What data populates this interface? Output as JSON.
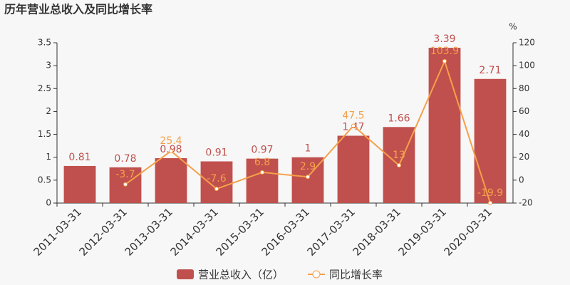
{
  "chart_data": {
    "type": "bar-line",
    "title": "历年营业总收入及同比增长率",
    "categories": [
      "2011-03-31",
      "2012-03-31",
      "2013-03-31",
      "2014-03-31",
      "2015-03-31",
      "2016-03-31",
      "2017-03-31",
      "2018-03-31",
      "2019-03-31",
      "2020-03-31"
    ],
    "series": [
      {
        "name": "营业总收入（亿）",
        "color": "#c0504d",
        "type": "bar",
        "values": [
          0.81,
          0.78,
          0.98,
          0.91,
          0.97,
          1,
          1.47,
          1.66,
          3.39,
          2.71
        ]
      },
      {
        "name": "同比增长率",
        "color": "#f5a04a",
        "type": "line",
        "axis": "y2",
        "values": [
          null,
          -3.7,
          25.4,
          -7.6,
          6.8,
          2.9,
          47.5,
          13,
          103.9,
          -19.9
        ]
      }
    ],
    "ylim": [
      0,
      3.5
    ],
    "yticks": [
      0,
      0.5,
      1,
      1.5,
      2,
      2.5,
      3,
      3.5
    ],
    "y2lim": [
      -20,
      120
    ],
    "y2ticks": [
      -20,
      0,
      20,
      40,
      60,
      80,
      100,
      120
    ],
    "y2_unit": "%"
  }
}
